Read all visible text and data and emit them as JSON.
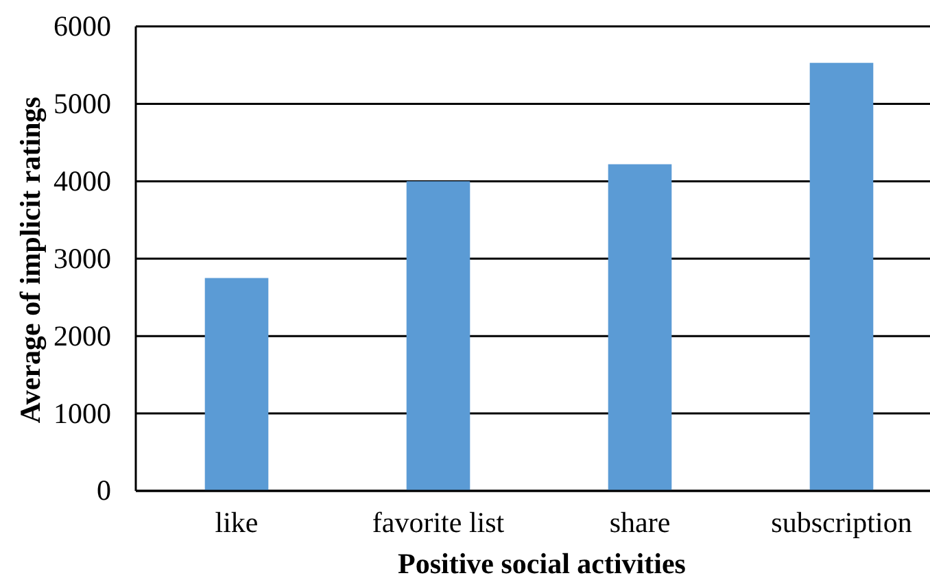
{
  "chart_data": {
    "type": "bar",
    "xlabel": "Positive social activities",
    "ylabel": "Average of implicit ratings",
    "categories": [
      "like",
      "favorite list",
      "share",
      "subscription"
    ],
    "values": [
      2750,
      4000,
      4220,
      5530
    ],
    "color": "#5b9bd5",
    "ylim": [
      0,
      6000
    ],
    "yticks": [
      0,
      1000,
      2000,
      3000,
      4000,
      5000,
      6000
    ],
    "grid": "y"
  }
}
